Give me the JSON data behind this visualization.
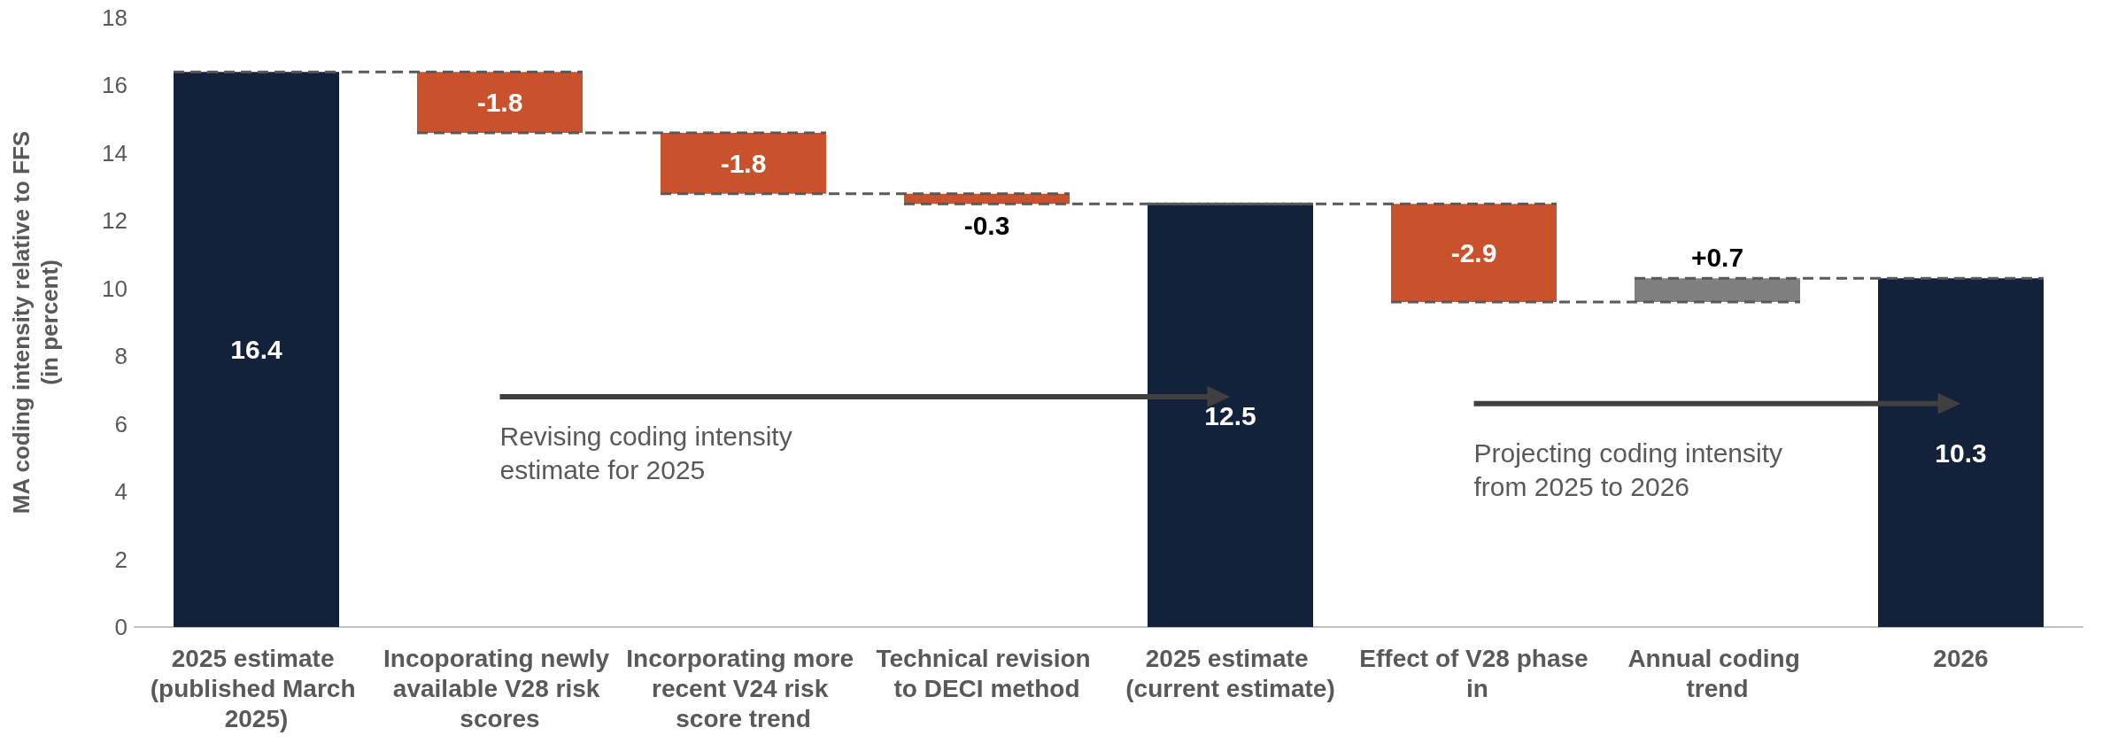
{
  "chart_data": {
    "type": "bar",
    "categories": [
      "2025 estimate (published March 2025)",
      "Incoporating newly available V28 risk scores",
      "Incorporating more recent V24 risk score trend",
      "Technical revision to DECI method",
      "2025 estimate (current estimate)",
      "Effect of V28 phase in",
      "Annual coding trend",
      "2026"
    ],
    "values": [
      16.4,
      -1.8,
      -1.8,
      -0.3,
      12.5,
      -2.9,
      0.7,
      10.3
    ],
    "base": [
      0,
      16.4,
      14.6,
      12.8,
      0,
      12.5,
      9.6,
      0
    ],
    "colors": [
      "#13213a",
      "#c9512c",
      "#c9512c",
      "#c9512c",
      "#13213a",
      "#c9512c",
      "#7f7f7f",
      "#13213a"
    ],
    "value_labels": [
      "16.4",
      "-1.8",
      "-1.8",
      "-0.3",
      "12.5",
      "-2.9",
      "+0.7",
      "10.3"
    ],
    "ylabel": "MA coding intensity relative to FFS\n(in percent)",
    "ylim": [
      0,
      18
    ],
    "yticks": [
      0,
      2,
      4,
      6,
      8,
      10,
      12,
      14,
      16,
      18
    ],
    "annotations": [
      "Revising coding intensity\nestimate for 2025",
      "Projecting coding intensity\nfrom 2025 to 2026"
    ]
  }
}
